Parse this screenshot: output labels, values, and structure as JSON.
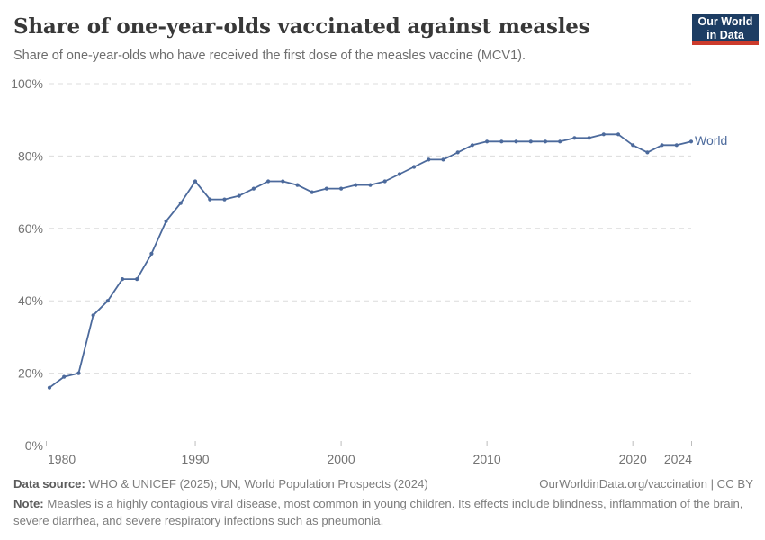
{
  "header": {
    "title": "Share of one-year-olds vaccinated against measles",
    "subtitle": "Share of one-year-olds who have received the first dose of the measles vaccine (MCV1)."
  },
  "logo": {
    "line1": "Our World",
    "line2": "in Data"
  },
  "chart_data": {
    "type": "line",
    "title": "Share of one-year-olds vaccinated against measles",
    "unit": "%",
    "x": [
      1980,
      1981,
      1982,
      1983,
      1984,
      1985,
      1986,
      1987,
      1988,
      1989,
      1990,
      1991,
      1992,
      1993,
      1994,
      1995,
      1996,
      1997,
      1998,
      1999,
      2000,
      2001,
      2002,
      2003,
      2004,
      2005,
      2006,
      2007,
      2008,
      2009,
      2010,
      2011,
      2012,
      2013,
      2014,
      2015,
      2016,
      2017,
      2018,
      2019,
      2020,
      2021,
      2022,
      2023,
      2024
    ],
    "series": [
      {
        "name": "World",
        "values": [
          16,
          19,
          20,
          36,
          40,
          46,
          46,
          53,
          62,
          67,
          73,
          68,
          68,
          69,
          71,
          73,
          73,
          72,
          70,
          71,
          71,
          72,
          72,
          73,
          75,
          77,
          79,
          79,
          81,
          83,
          84,
          84,
          84,
          84,
          84,
          84,
          85,
          85,
          86,
          86,
          83,
          81,
          83,
          83,
          84
        ]
      }
    ],
    "xlabel": "",
    "ylabel": "",
    "ylim": [
      0,
      100
    ],
    "xlim": [
      1980,
      2024
    ],
    "grid": "horizontal-dashed",
    "legend_position": "end-of-line-label",
    "yticks": {
      "values": [
        0,
        20,
        40,
        60,
        80,
        100
      ],
      "labels": [
        "0%",
        "20%",
        "40%",
        "60%",
        "80%",
        "100%"
      ]
    },
    "xticks": {
      "values": [
        1980,
        1990,
        2000,
        2010,
        2020,
        2024
      ],
      "labels": [
        "1980",
        "1990",
        "2000",
        "2010",
        "2020",
        "2024"
      ]
    }
  },
  "colors": {
    "line": "#4c6a9c",
    "logo_background": "#1d3d63",
    "logo_bar": "#cc3b2c"
  },
  "footer": {
    "datasource_label": "Data source:",
    "datasource_text": " WHO & UNICEF (2025); UN, World Population Prospects (2024)",
    "link_text": "OurWorldinData.org/vaccination | CC BY",
    "note_label": "Note:",
    "note_text": " Measles is a highly contagious viral disease, most common in young children. Its effects include blindness, inflammation of the brain, severe diarrhea, and severe respiratory infections such as pneumonia."
  }
}
